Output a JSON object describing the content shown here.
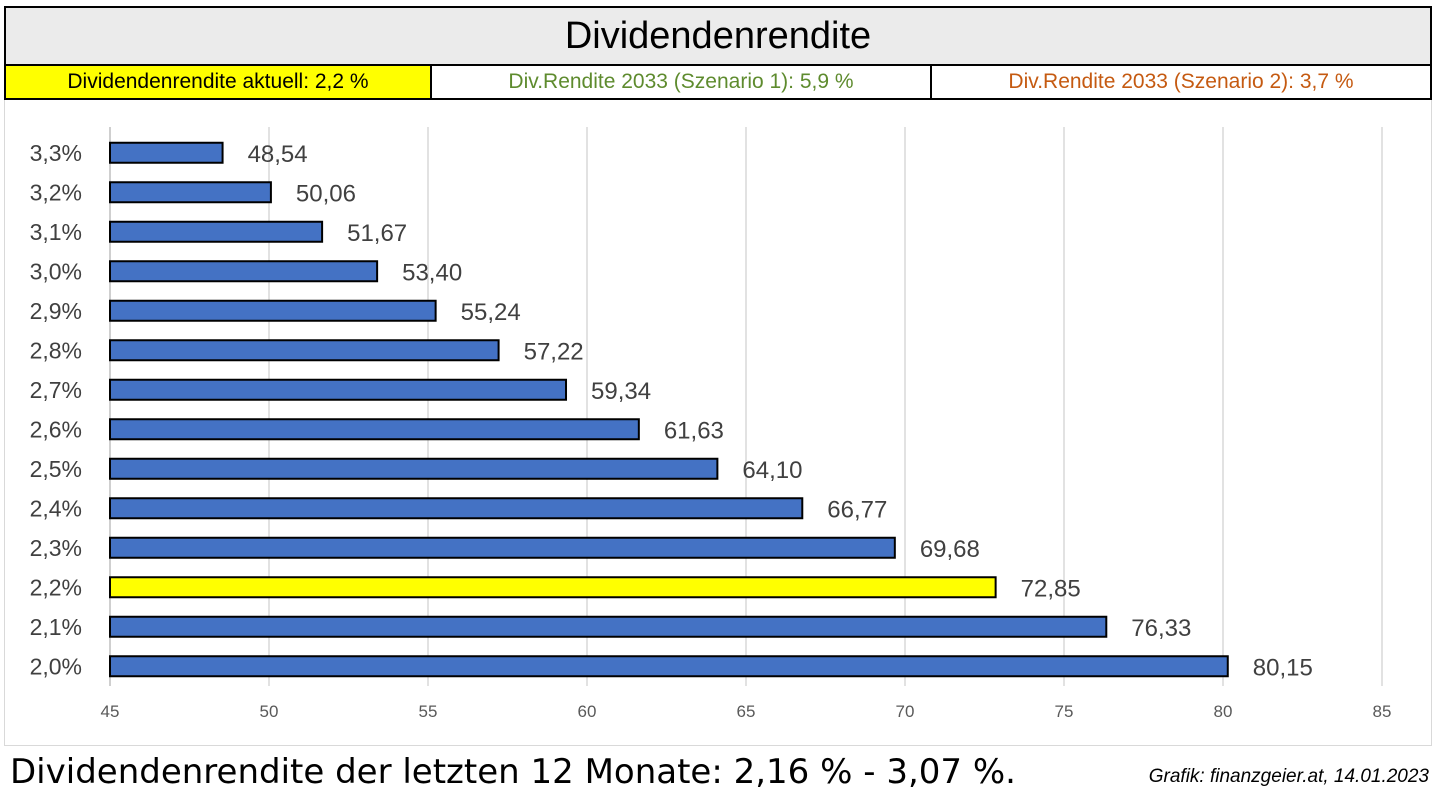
{
  "header": {
    "title": "Dividendenrendite",
    "current": "Dividendenrendite aktuell: 2,2 %",
    "scenario1": "Div.Rendite 2033 (Szenario 1): 5,9 %",
    "scenario2": "Div.Rendite 2033 (Szenario 2): 3,7 %"
  },
  "footer": {
    "summary": "Dividendenrendite der letzten 12 Monate: 2,16 % - 3,07 %.",
    "credit": "Grafik: finanzgeier.at, 14.01.2023"
  },
  "colors": {
    "bar": "#4472c4",
    "highlight": "#ffff00",
    "scenario1": "#5e8b2e",
    "scenario2": "#c55a11"
  },
  "chart_data": {
    "type": "bar",
    "orientation": "horizontal",
    "categories": [
      "3,3%",
      "3,2%",
      "3,1%",
      "3,0%",
      "2,9%",
      "2,8%",
      "2,7%",
      "2,6%",
      "2,5%",
      "2,4%",
      "2,3%",
      "2,2%",
      "2,1%",
      "2,0%"
    ],
    "values": [
      48.54,
      50.06,
      51.67,
      53.4,
      55.24,
      57.22,
      59.34,
      61.63,
      64.1,
      66.77,
      69.68,
      72.85,
      76.33,
      80.15
    ],
    "value_labels": [
      "48,54",
      "50,06",
      "51,67",
      "53,40",
      "55,24",
      "57,22",
      "59,34",
      "61,63",
      "64,10",
      "66,77",
      "69,68",
      "72,85",
      "76,33",
      "80,15"
    ],
    "highlight_category": "2,2%",
    "xlim": [
      45,
      85
    ],
    "xticks": [
      45,
      50,
      55,
      60,
      65,
      70,
      75,
      80,
      85
    ],
    "grid": true,
    "title": "",
    "xlabel": "",
    "ylabel": ""
  }
}
